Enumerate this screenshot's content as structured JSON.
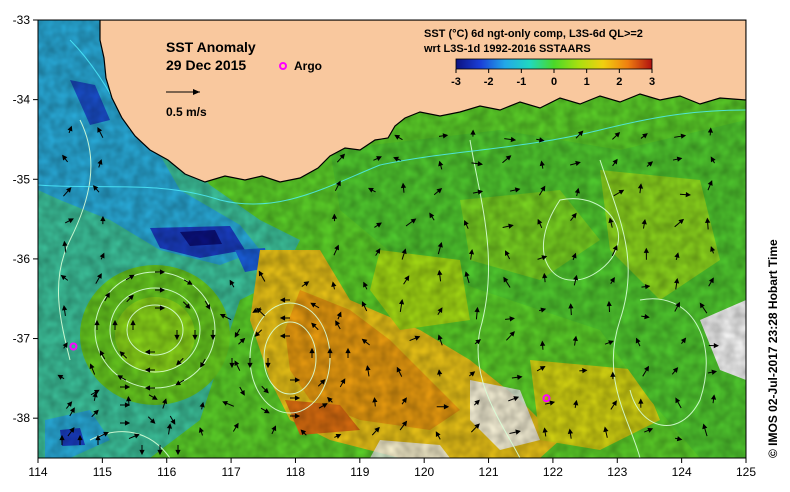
{
  "title": "SST Anomaly",
  "date": "29 Dec 2015",
  "argo_label": "Argo",
  "vector_scale_label": "0.5 m/s",
  "product_line1": "SST (°C) 6d ngt-only comp, L3S-6d QL>=2",
  "product_line2": "wrt L3S-1d 1992-2016 SSTAARS",
  "credit": "© IMOS 02-Jul-2017 23:28 Hobart Time",
  "colors": {
    "land": "#f9c89e",
    "argo": "#ff00ff",
    "coast": "#000000",
    "sst_contour": "#d8ffd8"
  },
  "chart_data": {
    "type": "heatmap",
    "colorbar": {
      "ticks": [
        "-3",
        "-2",
        "-1",
        "0",
        "1",
        "2",
        "3"
      ],
      "range": [
        -3,
        3
      ],
      "stops": [
        "#0b1180",
        "#1a3fd8",
        "#22a8e8",
        "#20d8c0",
        "#4ad828",
        "#a8e010",
        "#f0d010",
        "#f08010",
        "#b01010"
      ]
    },
    "x_axis": {
      "ticks": [
        "114",
        "115",
        "116",
        "117",
        "118",
        "119",
        "120",
        "121",
        "122",
        "123",
        "124",
        "125"
      ],
      "range": [
        114,
        125
      ]
    },
    "y_axis": {
      "ticks": [
        "-33",
        "-34",
        "-35",
        "-36",
        "-37",
        "-38"
      ],
      "range": [
        -38.5,
        -33
      ]
    },
    "argo_floats": [
      {
        "lon": 114.55,
        "lat": -37.1
      },
      {
        "lon": 121.9,
        "lat": -37.75
      }
    ]
  }
}
